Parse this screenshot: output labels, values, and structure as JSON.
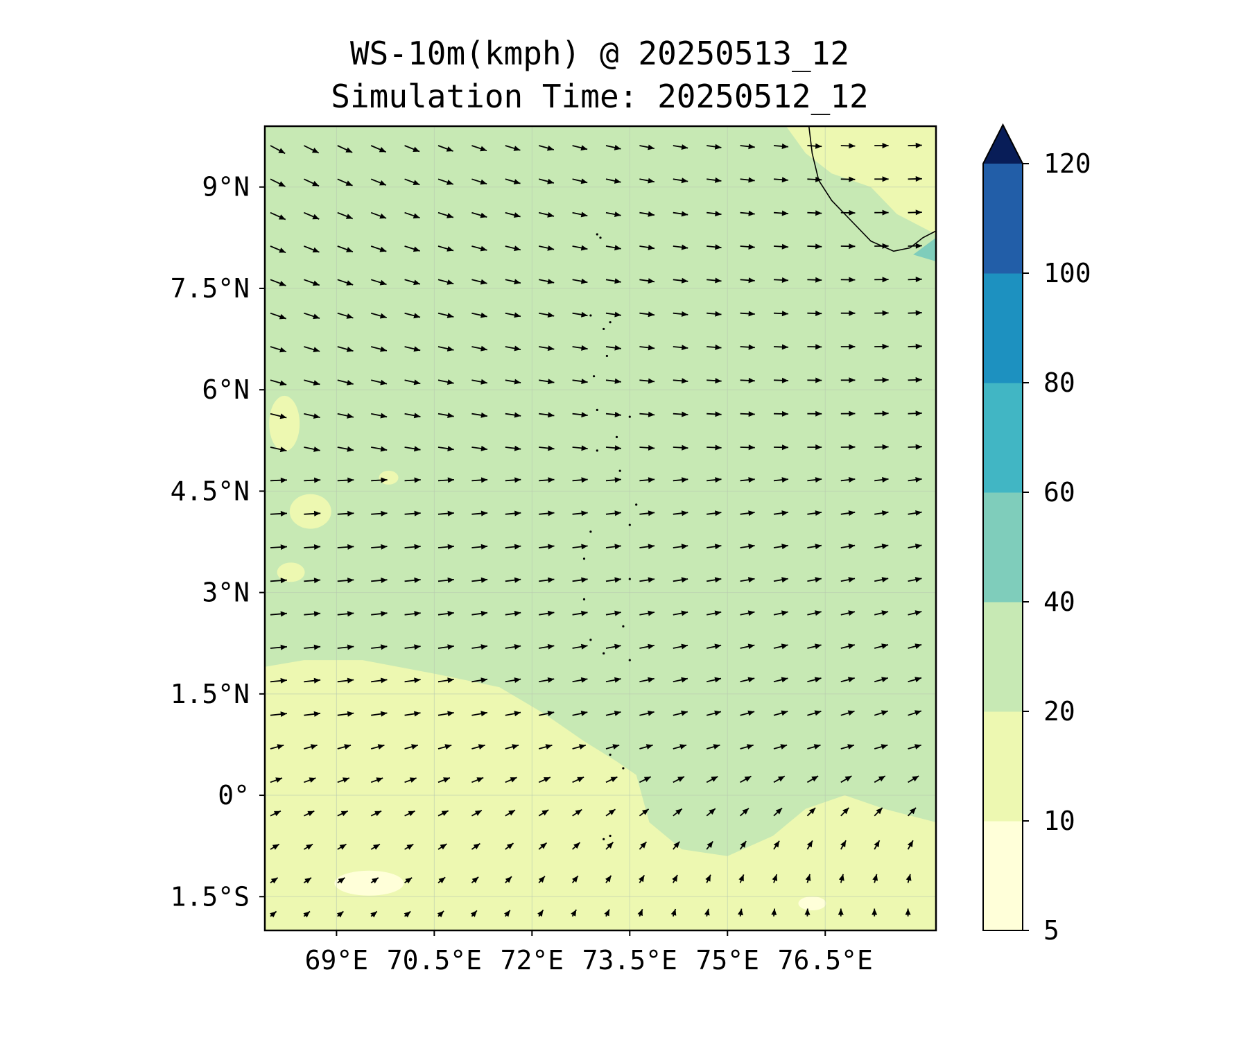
{
  "title": {
    "line1": "WS-10m(kmph) @ 20250513_12",
    "line2": "Simulation Time: 20250512_12"
  },
  "map": {
    "projection": "PlateCarree",
    "lon_range": [
      67.9,
      78.2
    ],
    "lat_range": [
      -2.0,
      9.9
    ],
    "x_tick_labels": [
      "69°E",
      "70.5°E",
      "72°E",
      "73.5°E",
      "75°E",
      "76.5°E"
    ],
    "x_tick_values": [
      69,
      70.5,
      72,
      73.5,
      75,
      76.5
    ],
    "y_tick_labels": [
      "9°N",
      "7.5°N",
      "6°N",
      "4.5°N",
      "3°N",
      "1.5°N",
      "0°",
      "1.5°S"
    ],
    "y_tick_values": [
      9,
      7.5,
      6,
      4.5,
      3,
      1.5,
      0,
      -1.5
    ],
    "gridlines": true,
    "background_fill": "20-40 kmph",
    "features": [
      "India southern coastline (top-right)",
      "Sri Lanka edge",
      "Lakshadweep islands",
      "Maldives atoll chain"
    ],
    "wind_vectors": {
      "north_region": "from northwest (pointing southeast)",
      "middle_region": "from west (pointing east)",
      "south_region": "from southwest (pointing northeast / north)"
    }
  },
  "colorbar": {
    "levels": [
      5,
      10,
      20,
      40,
      60,
      80,
      100,
      120
    ],
    "tick_labels": [
      "5",
      "10",
      "20",
      "40",
      "60",
      "80",
      "100",
      "120"
    ],
    "colors": [
      "#ffffd9",
      "#edf8b1",
      "#c7e9b4",
      "#7fcdbb",
      "#41b6c4",
      "#1d91c0",
      "#225ea8",
      "#0c2c84"
    ],
    "extend": "max",
    "extend_color": "#081d58"
  },
  "chart_data": {
    "type": "heatmap",
    "variable": "WS-10m",
    "unit": "kmph",
    "valid_time": "20250513_12",
    "simulation_time": "20250512_12",
    "color_levels": [
      5,
      10,
      20,
      40,
      60,
      80,
      100,
      120
    ],
    "xlim": [
      67.9,
      78.2
    ],
    "ylim": [
      -2.0,
      9.9
    ],
    "dominant_range": "20-40",
    "low_wind_zones": "10-20 kmph in south-west and southern band below ~0.5°N; 5-10 kmph patches near -1.5°S",
    "high_wind_zones": "40-60 kmph small patch near Sri Lanka at ~8°N 78°E"
  }
}
